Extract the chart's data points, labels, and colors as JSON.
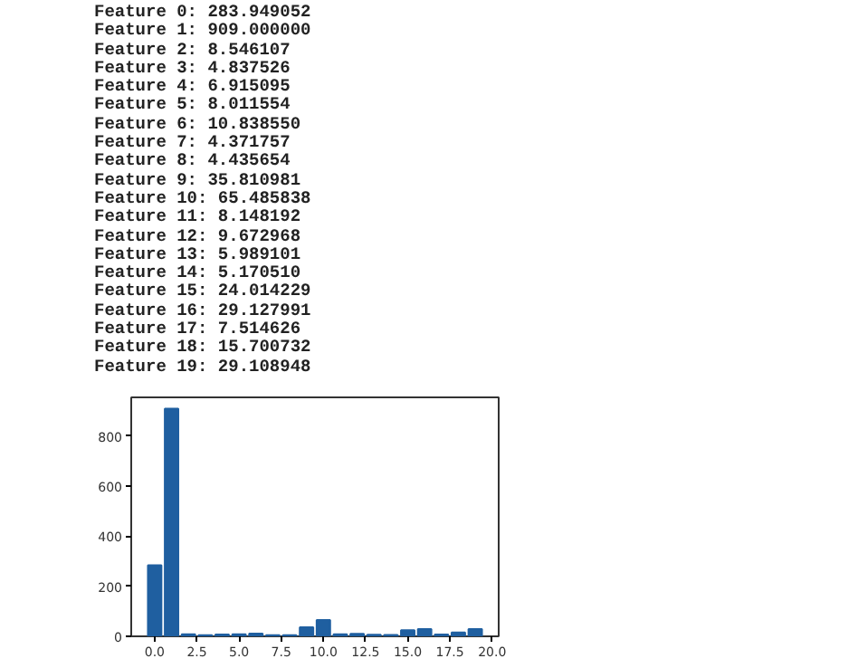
{
  "chart_data": {
    "type": "bar",
    "x": [
      0,
      1,
      2,
      3,
      4,
      5,
      6,
      7,
      8,
      9,
      10,
      11,
      12,
      13,
      14,
      15,
      16,
      17,
      18,
      19
    ],
    "values": [
      283.949052,
      909.0,
      8.546107,
      4.837526,
      6.915095,
      8.011554,
      10.83855,
      4.371757,
      4.435654,
      35.810981,
      65.485838,
      8.148192,
      9.672968,
      5.989101,
      5.17051,
      24.014229,
      29.127991,
      7.514626,
      15.700732,
      29.108948
    ],
    "color": "#1f5fa0",
    "xlim": [
      -1.39,
      20.39
    ],
    "ylim": [
      0,
      954.45
    ],
    "xticks": [
      {
        "value": 0,
        "label": "0.0"
      },
      {
        "value": 2.5,
        "label": "2.5"
      },
      {
        "value": 5,
        "label": "5.0"
      },
      {
        "value": 7.5,
        "label": "7.5"
      },
      {
        "value": 10,
        "label": "10.0"
      },
      {
        "value": 12.5,
        "label": "12.5"
      },
      {
        "value": 15,
        "label": "15.0"
      },
      {
        "value": 17.5,
        "label": "17.5"
      },
      {
        "value": 20,
        "label": "20.0"
      }
    ],
    "yticks": [
      0,
      200,
      400,
      600,
      800
    ],
    "grid": false,
    "annotations": [
      "Feature 0: 283.949052",
      "Feature 1: 909.000000",
      "Feature 2: 8.546107",
      "Feature 3: 4.837526",
      "Feature 4: 6.915095",
      "Feature 5: 8.011554",
      "Feature 6: 10.838550",
      "Feature 7: 4.371757",
      "Feature 8: 4.435654",
      "Feature 9: 35.810981",
      "Feature 10: 65.485838",
      "Feature 11: 8.148192",
      "Feature 12: 9.672968",
      "Feature 13: 5.989101",
      "Feature 14: 5.170510",
      "Feature 15: 24.014229",
      "Feature 16: 29.127991",
      "Feature 17: 7.514626",
      "Feature 18: 15.700732",
      "Feature 19: 29.108948"
    ]
  }
}
